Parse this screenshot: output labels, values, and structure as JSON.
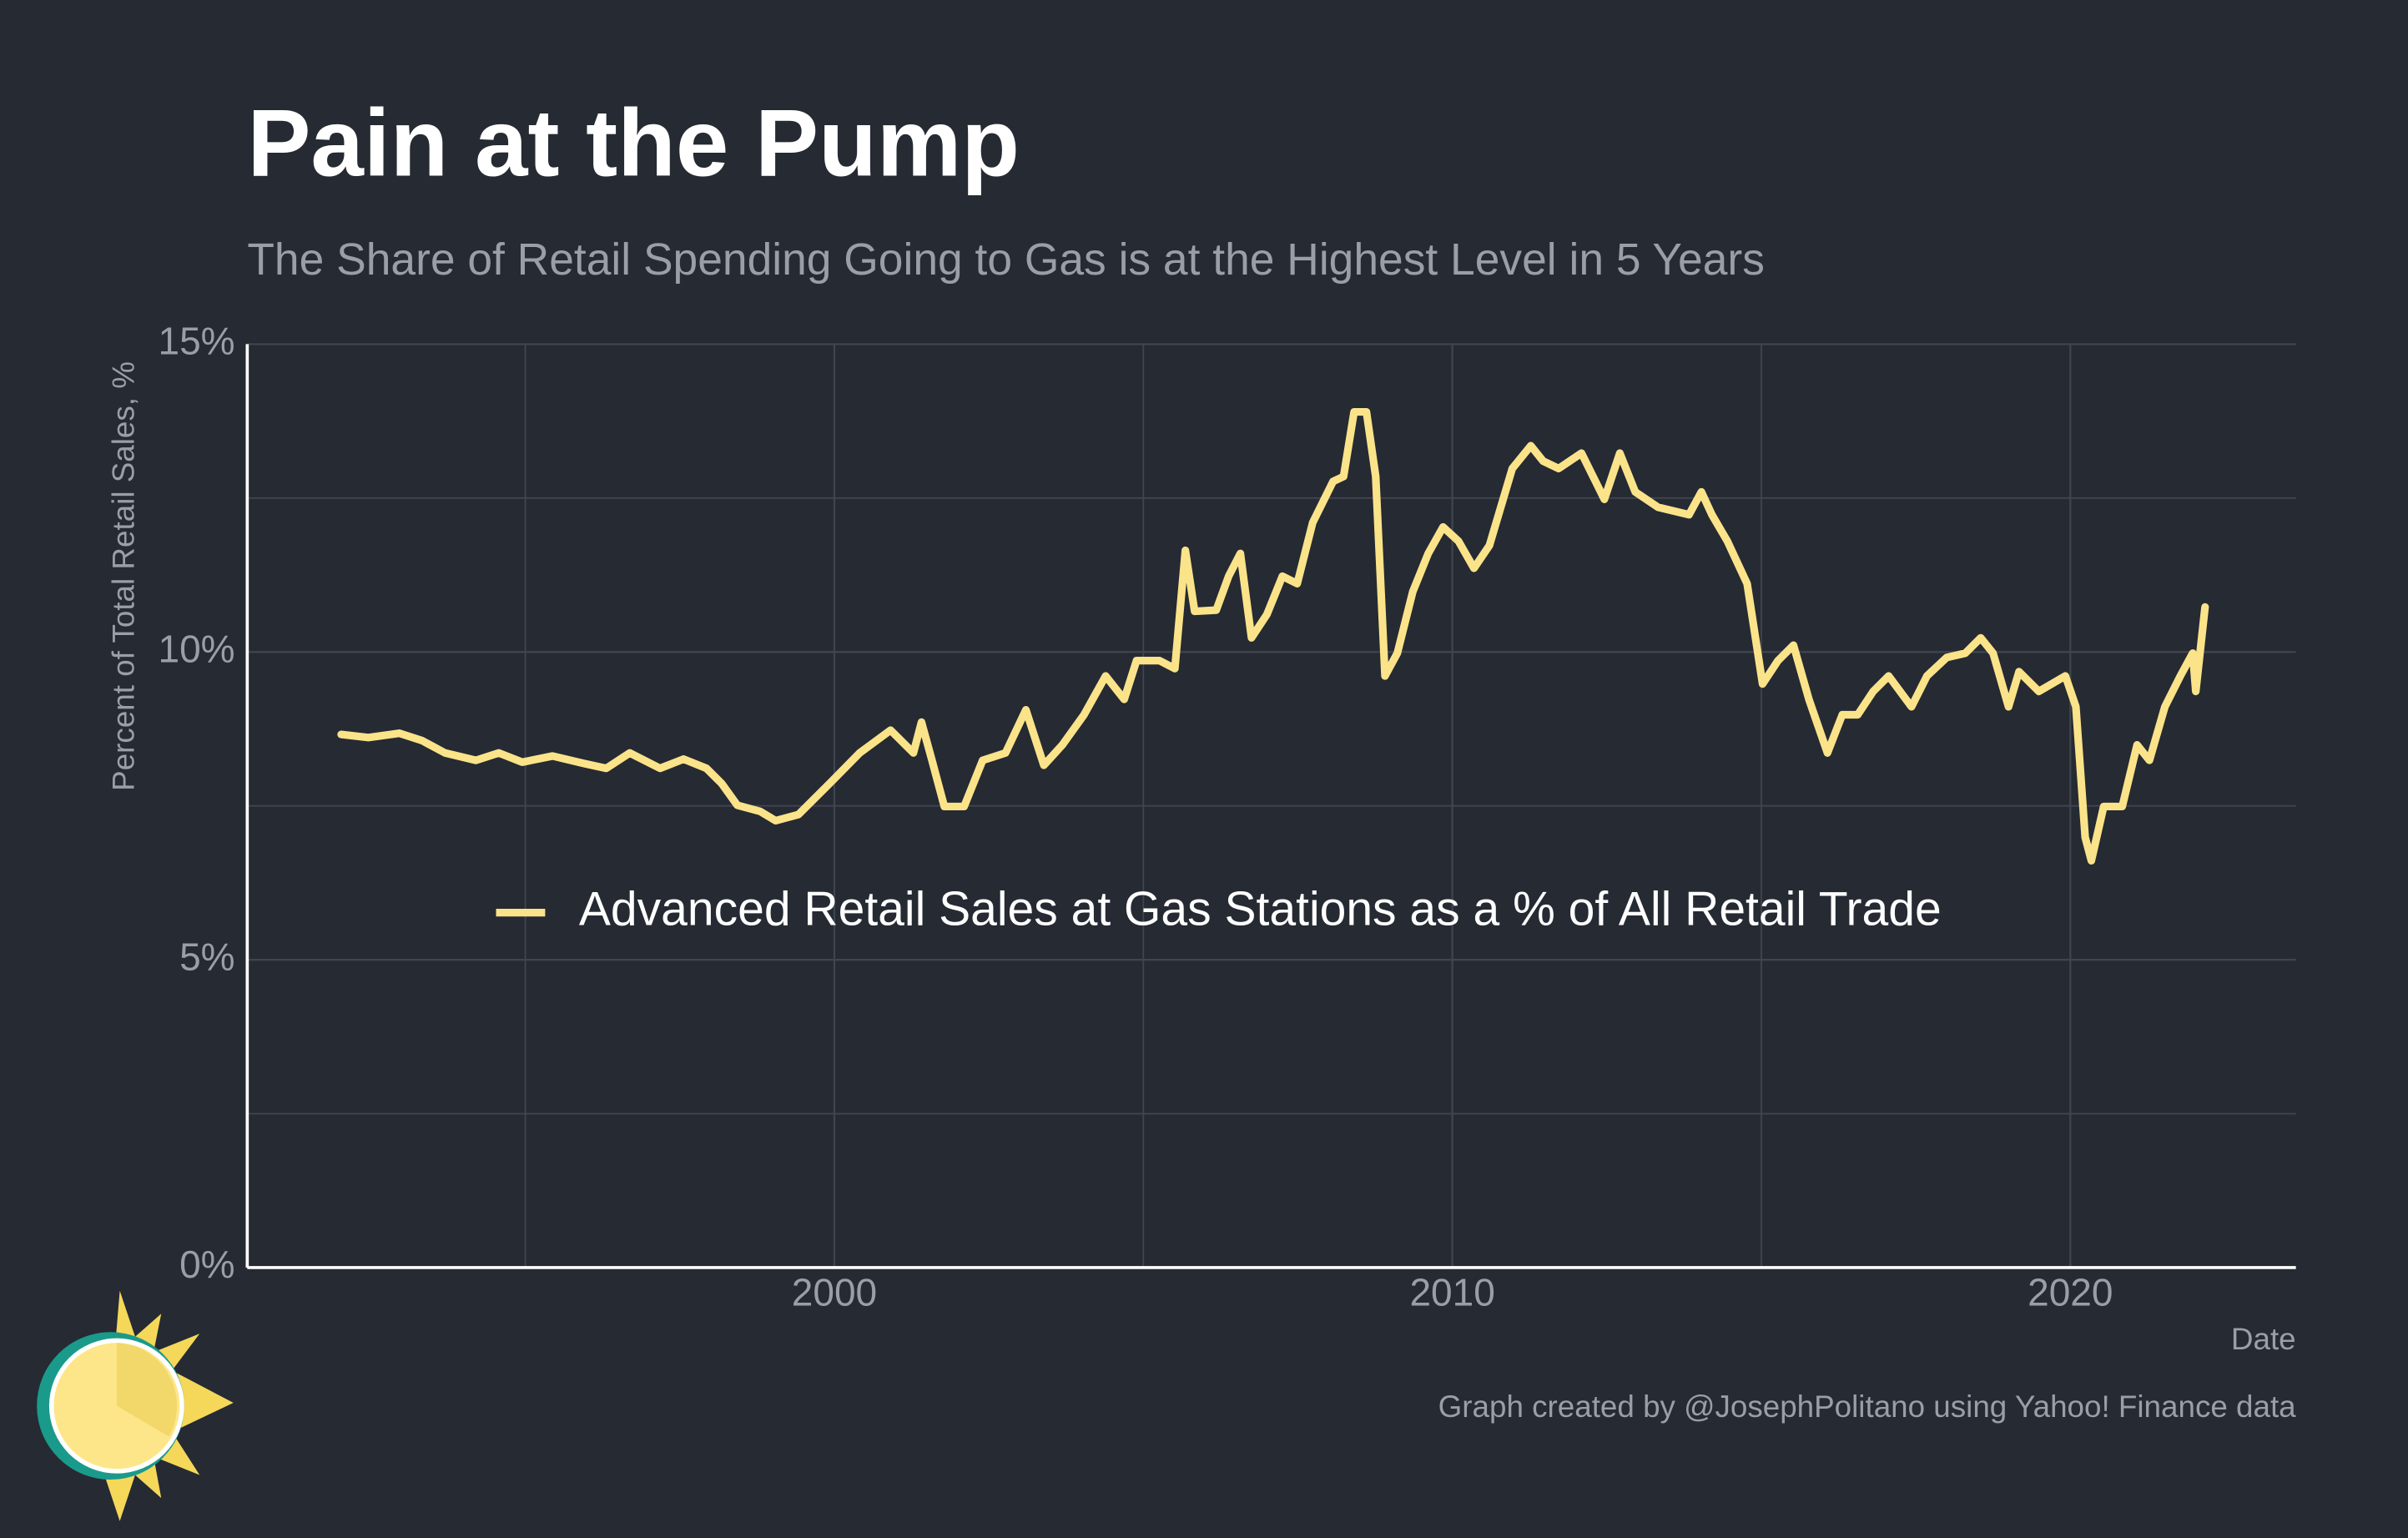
{
  "chart_data": {
    "type": "line",
    "title": "Pain at the Pump",
    "subtitle": "The Share of Retail Spending Going to Gas is at the Highest Level in 5 Years",
    "ylabel": "Percent of Total Retail Sales, %",
    "xlabel": "Date",
    "caption": "Graph created by @JosephPolitano using Yahoo! Finance data",
    "legend": "center",
    "grid": true,
    "xlim": [
      1990.5,
      2023.65
    ],
    "xticks": [
      2000,
      2010,
      2020
    ],
    "x_minor_ticks": [
      1995,
      2005,
      2015
    ],
    "ylim": [
      0,
      15
    ],
    "yticks": [
      {
        "value": 0,
        "label": "0%"
      },
      {
        "value": 5,
        "label": "5%"
      },
      {
        "value": 10,
        "label": "10%"
      },
      {
        "value": 15,
        "label": "15%"
      }
    ],
    "y_minor_ticks": [
      2.5,
      7.5,
      12.5
    ],
    "x": [
      1992.02,
      1992.46,
      1992.96,
      1993.33,
      1993.7,
      1994.2,
      1994.57,
      1994.95,
      1995.44,
      1995.94,
      1996.31,
      1996.69,
      1997.18,
      1997.56,
      1997.93,
      1998.18,
      1998.43,
      1998.8,
      1999.05,
      1999.42,
      1999.92,
      2000.41,
      2000.91,
      2001.28,
      2001.41,
      2001.58,
      2001.78,
      2002.1,
      2002.4,
      2002.77,
      2003.1,
      2003.39,
      2003.69,
      2004.04,
      2004.39,
      2004.69,
      2004.89,
      2005.26,
      2005.51,
      2005.68,
      2005.83,
      2006.18,
      2006.38,
      2006.57,
      2006.75,
      2007.0,
      2007.25,
      2007.49,
      2007.74,
      2008.07,
      2008.24,
      2008.41,
      2008.61,
      2008.76,
      2008.91,
      2009.11,
      2009.36,
      2009.61,
      2009.85,
      2010.1,
      2010.35,
      2010.6,
      2010.97,
      2011.27,
      2011.47,
      2011.72,
      2012.09,
      2012.46,
      2012.71,
      2012.96,
      2013.33,
      2013.83,
      2014.03,
      2014.2,
      2014.45,
      2014.77,
      2015.02,
      2015.27,
      2015.52,
      2015.77,
      2016.07,
      2016.31,
      2016.56,
      2016.81,
      2017.06,
      2017.43,
      2017.68,
      2018.0,
      2018.3,
      2018.55,
      2018.75,
      2019.0,
      2019.17,
      2019.49,
      2019.92,
      2020.09,
      2020.24,
      2020.34,
      2020.54,
      2020.84,
      2021.08,
      2021.28,
      2021.53,
      2021.78,
      2021.98,
      2022.03,
      2022.18
    ],
    "series": [
      {
        "name": "Advanced Retail Sales at Gas Stations as a % of All Retail Trade",
        "color": "#fbe38a",
        "values": [
          8.66,
          8.61,
          8.68,
          8.56,
          8.36,
          8.24,
          8.36,
          8.21,
          8.31,
          8.19,
          8.11,
          8.36,
          8.11,
          8.26,
          8.11,
          7.86,
          7.51,
          7.41,
          7.26,
          7.36,
          7.86,
          8.36,
          8.73,
          8.36,
          8.86,
          8.24,
          7.49,
          7.49,
          8.24,
          8.36,
          9.06,
          8.16,
          8.49,
          8.98,
          9.61,
          9.23,
          9.86,
          9.86,
          9.73,
          11.65,
          10.66,
          10.68,
          11.23,
          11.6,
          10.23,
          10.61,
          11.23,
          11.11,
          12.1,
          12.77,
          12.85,
          13.9,
          13.9,
          12.85,
          9.61,
          9.98,
          10.98,
          11.6,
          12.03,
          11.8,
          11.36,
          11.73,
          12.98,
          13.35,
          13.1,
          12.98,
          13.23,
          12.48,
          13.23,
          12.6,
          12.35,
          12.23,
          12.6,
          12.23,
          11.8,
          11.11,
          9.48,
          9.86,
          10.11,
          9.23,
          8.36,
          8.98,
          8.98,
          9.36,
          9.61,
          9.11,
          9.61,
          9.91,
          9.98,
          10.23,
          9.98,
          9.11,
          9.68,
          9.36,
          9.61,
          9.11,
          6.99,
          6.61,
          7.49,
          7.49,
          8.49,
          8.24,
          9.11,
          9.61,
          9.98,
          9.36,
          10.73
        ]
      }
    ]
  }
}
